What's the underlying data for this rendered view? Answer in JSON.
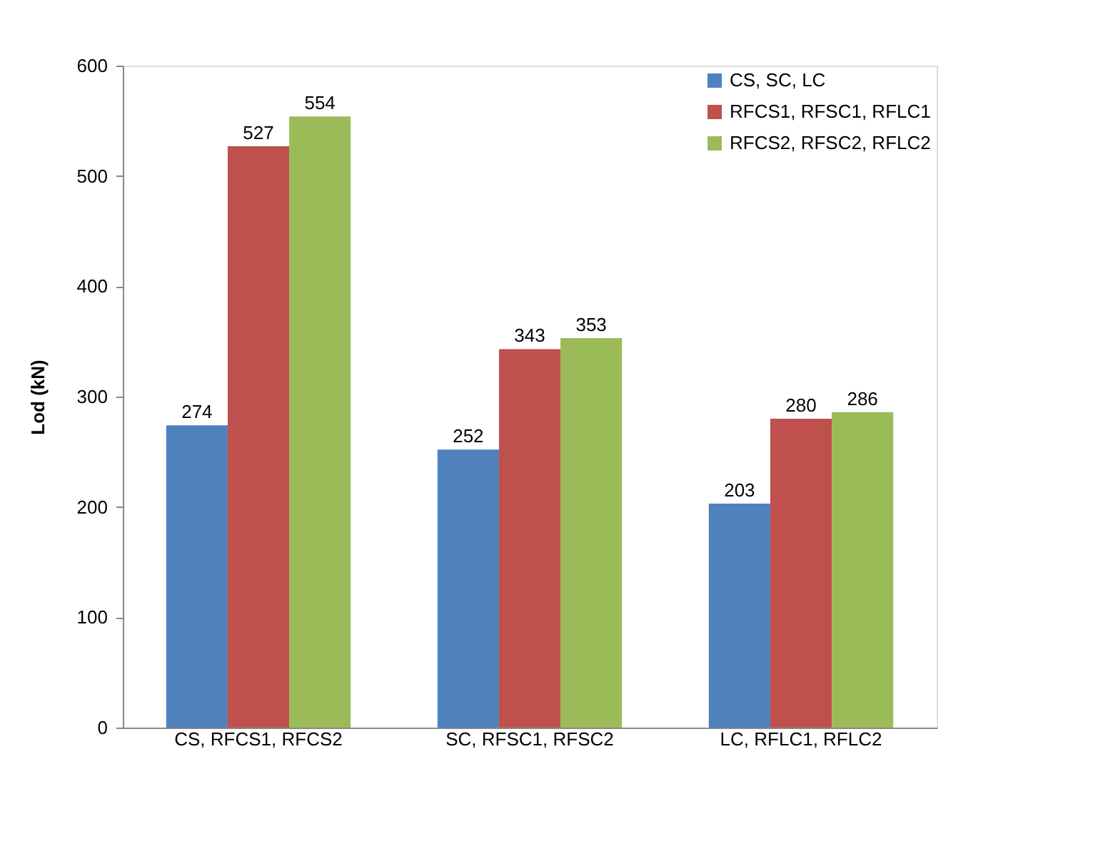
{
  "chart_data": {
    "type": "bar",
    "ylabel": "Lod (kN)",
    "categories": [
      "CS, RFCS1, RFCS2",
      "SC, RFSC1, RFSC2",
      "LC, RFLC1, RFLC2"
    ],
    "series": [
      {
        "name": "CS, SC, LC",
        "color": "#4f81bd",
        "values": [
          274,
          252,
          203
        ]
      },
      {
        "name": "RFCS1, RFSC1, RFLC1",
        "color": "#c0504d",
        "values": [
          527,
          343,
          280
        ]
      },
      {
        "name": "RFCS2, RFSC2, RFLC2",
        "color": "#9bbb59",
        "values": [
          554,
          353,
          286
        ]
      }
    ],
    "ylim": [
      0,
      600
    ],
    "yticks": [
      0,
      100,
      200,
      300,
      400,
      500,
      600
    ],
    "grid": false,
    "legend": "top right",
    "data_labels": true
  }
}
